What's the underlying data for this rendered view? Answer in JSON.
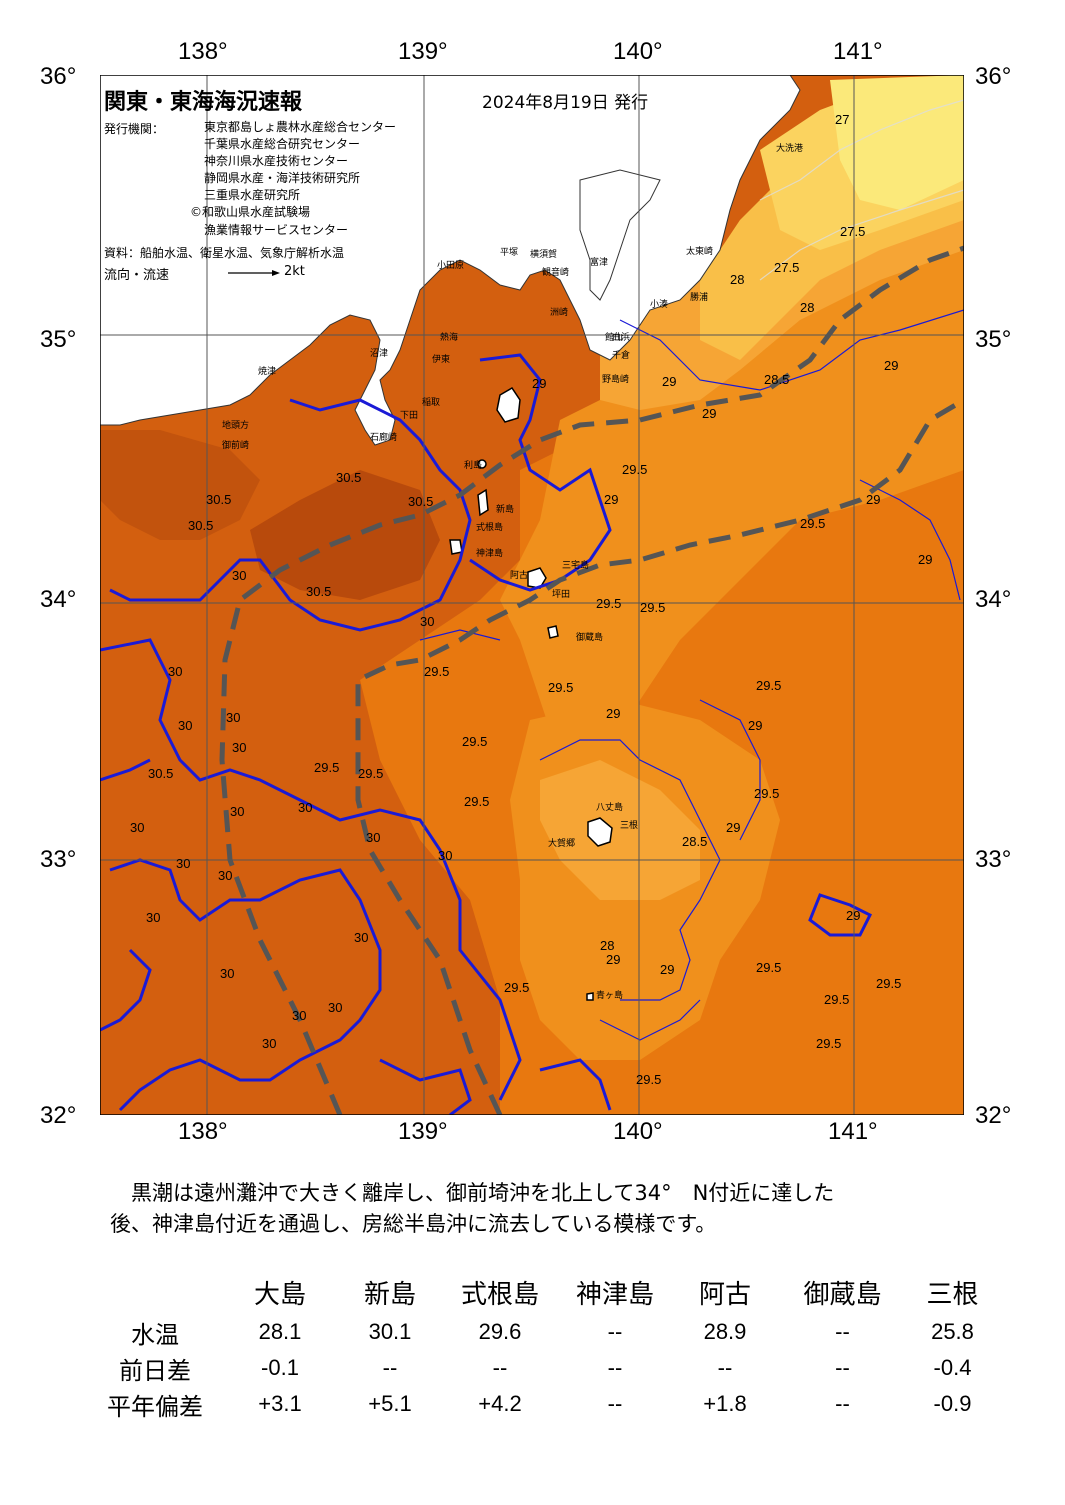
{
  "header": {
    "title": "関東・東海海況速報",
    "date": "2024年8月19日 発行",
    "issuer_label": "発行機関：",
    "issuers": [
      "東京都島しょ農林水産総合センター",
      "千葉県水産総合研究センター",
      "神奈川県水産技術センター",
      "静岡県水産・海洋技術研究所",
      "三重県水産研究所",
      "©和歌山県水産試験場",
      "漁業情報サービスセンター"
    ],
    "source": "資料：船舶水温、衛星水温、気象庁解析水温",
    "flow_label": "流向・流速",
    "flow_scale": "2kt"
  },
  "axes": {
    "lon_labels": [
      "138°",
      "139°",
      "140°",
      "141°"
    ],
    "lat_labels": [
      "36°",
      "35°",
      "34°",
      "33°",
      "32°"
    ]
  },
  "colors": {
    "sst_30_5_plus": "#b84a0c",
    "sst_30": "#d35f0f",
    "sst_29_5": "#e8780f",
    "sst_29": "#f0901c",
    "sst_28_5": "#f6a535",
    "sst_28": "#f9bf48",
    "sst_27_5": "#fbd35f",
    "sst_27": "#fbe97a",
    "land": "#ffffff",
    "isotherm": "#1a1ad6",
    "kuroshio": "#555555"
  },
  "place_names": [
    "大洗港",
    "太東崎",
    "勝浦",
    "小湊",
    "富津",
    "横須賀",
    "観音崎",
    "平塚",
    "小田原",
    "洲崎",
    "白浜",
    "千倉",
    "野島崎",
    "館山",
    "伊東",
    "熱海",
    "沼津",
    "焼津",
    "地頭方",
    "御前崎",
    "石廊崎",
    "下田",
    "稲取",
    "利島",
    "新島",
    "式根島",
    "神津島",
    "三宅島",
    "阿古",
    "坪田",
    "御蔵島",
    "八丈島",
    "三根",
    "大賀郷",
    "青ヶ島"
  ],
  "isotherm_labels": [
    "27",
    "27.5",
    "27.5",
    "28",
    "28",
    "28.5",
    "29",
    "29",
    "29",
    "29",
    "29.5",
    "29.5",
    "30.5",
    "30.5",
    "30.5",
    "30.5",
    "30.5",
    "30.5",
    "30",
    "30",
    "30",
    "30",
    "30",
    "29.5",
    "29.5",
    "29.5",
    "29.5",
    "29.5",
    "29.5",
    "29.5",
    "29.5",
    "29.5",
    "29.5",
    "29",
    "28.5",
    "29",
    "29",
    "29",
    "29",
    "28",
    "29.5",
    "29.5",
    "29.5",
    "29.5",
    "29.5",
    "29",
    "29",
    "29",
    "30",
    "30",
    "30",
    "30",
    "30",
    "30",
    "30",
    "30",
    "30",
    "30",
    "30",
    "30",
    "30",
    "30",
    "29",
    "29.5"
  ],
  "summary": [
    "　黒潮は遠州灘沖で大きく離岸し、御前埼沖を北上して34°　N付近に達した",
    "後、神津島付近を通過し、房総半島沖に流去している模様です。"
  ],
  "table": {
    "columns": [
      "大島",
      "新島",
      "式根島",
      "神津島",
      "阿古",
      "御蔵島",
      "三根"
    ],
    "rows": [
      {
        "label": "水温",
        "values": [
          "28.1",
          "30.1",
          "29.6",
          "--",
          "28.9",
          "--",
          "25.8"
        ]
      },
      {
        "label": "前日差",
        "values": [
          "-0.1",
          "--",
          "--",
          "--",
          "--",
          "--",
          "-0.4"
        ]
      },
      {
        "label": "平年偏差",
        "values": [
          "+3.1",
          "+5.1",
          "+4.2",
          "--",
          "+1.8",
          "--",
          "-0.9"
        ]
      }
    ]
  }
}
